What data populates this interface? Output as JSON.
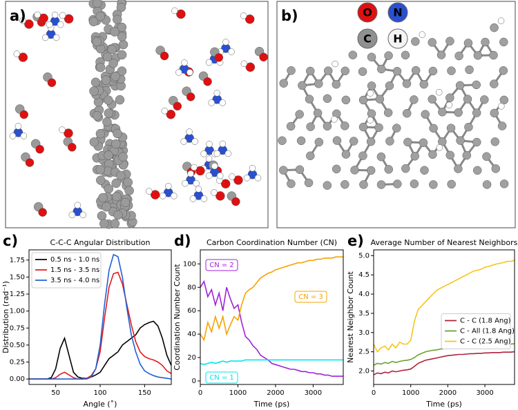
{
  "panels": {
    "a": {
      "label": "a)"
    },
    "b": {
      "label": "b)",
      "legend": [
        "O",
        "N",
        "C",
        "H"
      ]
    }
  },
  "chart_data": [
    {
      "type": "line",
      "panel_label": "c)",
      "title": "C-C-C Angular Distribution",
      "xlabel": "Angle (˚)",
      "ylabel": "Distribution (rad⁻¹)",
      "x": [
        20,
        25,
        30,
        35,
        40,
        45,
        50,
        55,
        60,
        65,
        70,
        75,
        80,
        85,
        90,
        95,
        100,
        105,
        110,
        115,
        120,
        125,
        130,
        135,
        140,
        145,
        150,
        155,
        160,
        165,
        170,
        175,
        180
      ],
      "series": [
        {
          "name": "0.5 ns - 1.0 ns",
          "color": "#000000",
          "values": [
            0,
            0,
            0,
            0,
            0,
            0.02,
            0.15,
            0.45,
            0.6,
            0.35,
            0.1,
            0.03,
            0.01,
            0.01,
            0.03,
            0.06,
            0.1,
            0.2,
            0.3,
            0.35,
            0.4,
            0.5,
            0.55,
            0.6,
            0.65,
            0.75,
            0.8,
            0.83,
            0.85,
            0.78,
            0.6,
            0.35,
            0.2
          ]
        },
        {
          "name": "1.5 ns - 3.5 ns",
          "color": "#e31a1c",
          "values": [
            0,
            0,
            0,
            0,
            0,
            0,
            0.02,
            0.07,
            0.1,
            0.06,
            0.02,
            0,
            0,
            0.01,
            0.05,
            0.15,
            0.4,
            0.9,
            1.35,
            1.55,
            1.57,
            1.4,
            1.1,
            0.8,
            0.55,
            0.4,
            0.33,
            0.3,
            0.28,
            0.25,
            0.2,
            0.12,
            0.08
          ]
        },
        {
          "name": "3.5 ns - 4.0 ns",
          "color": "#1f5fd6",
          "values": [
            0,
            0,
            0,
            0,
            0,
            0,
            0,
            0,
            0,
            0,
            0,
            0,
            0,
            0,
            0.03,
            0.15,
            0.5,
            1.1,
            1.6,
            1.83,
            1.8,
            1.5,
            1.05,
            0.65,
            0.4,
            0.22,
            0.12,
            0.08,
            0.05,
            0.03,
            0.02,
            0.01,
            0
          ]
        }
      ],
      "xlim": [
        20,
        180
      ],
      "xticks": [
        50,
        100,
        150
      ],
      "ylim": [
        -0.08,
        1.9
      ],
      "yticks": [
        {
          "value": 0,
          "label": "0.00"
        },
        {
          "value": 0.25,
          "label": "0.25"
        },
        {
          "value": 0.5,
          "label": "0.50"
        },
        {
          "value": 0.75,
          "label": "0.75"
        },
        {
          "value": 1,
          "label": "1.00"
        },
        {
          "value": 1.25,
          "label": "1.25"
        },
        {
          "value": 1.5,
          "label": "1.50"
        },
        {
          "value": 1.75,
          "label": "1.75"
        }
      ],
      "legend": "upper left"
    },
    {
      "type": "line",
      "panel_label": "d)",
      "title": "Carbon Coordination Number (CN)",
      "xlabel": "Time (ps)",
      "ylabel": "Coordination Number Count",
      "x": [
        0,
        100,
        200,
        300,
        400,
        500,
        600,
        700,
        800,
        900,
        1000,
        1100,
        1200,
        1300,
        1400,
        1500,
        1600,
        1700,
        1800,
        1900,
        2000,
        2100,
        2200,
        2300,
        2400,
        2500,
        2600,
        2700,
        2800,
        2900,
        3000,
        3100,
        3200,
        3300,
        3400,
        3500,
        3600,
        3700,
        3800
      ],
      "series": [
        {
          "name": "CN = 2",
          "color": "#a020d8",
          "values": [
            80,
            85,
            72,
            78,
            65,
            75,
            60,
            80,
            70,
            62,
            65,
            50,
            38,
            35,
            30,
            27,
            22,
            20,
            18,
            15,
            14,
            13,
            12,
            11,
            10,
            10,
            9,
            8,
            8,
            7,
            7,
            6,
            6,
            5,
            5,
            4,
            4,
            4,
            4
          ]
        },
        {
          "name": "CN = 3",
          "color": "#f5a300",
          "values": [
            40,
            35,
            50,
            42,
            55,
            45,
            55,
            40,
            48,
            55,
            52,
            65,
            75,
            78,
            80,
            84,
            88,
            90,
            92,
            93,
            95,
            96,
            97,
            98,
            99,
            100,
            101,
            101,
            102,
            103,
            103,
            104,
            104,
            105,
            105,
            105,
            106,
            106,
            106
          ]
        },
        {
          "name": "CN = 1",
          "color": "#00e5ee",
          "values": [
            15,
            14,
            15,
            16,
            15,
            16,
            17,
            16,
            17,
            17,
            17,
            17,
            18,
            18,
            18,
            18,
            18,
            18,
            18,
            18,
            18,
            18,
            18,
            18,
            18,
            18,
            18,
            18,
            18,
            18,
            18,
            18,
            18,
            18,
            18,
            18,
            18,
            18,
            18
          ]
        }
      ],
      "xlim": [
        0,
        3800
      ],
      "xticks": [
        0,
        1000,
        2000,
        3000
      ],
      "ylim": [
        -3,
        112
      ],
      "yticks": [
        0,
        20,
        40,
        60,
        80,
        100
      ]
    },
    {
      "type": "line",
      "panel_label": "e)",
      "title": "Average Number of Nearest Neighbors",
      "xlabel": "Time (ps)",
      "ylabel": "Nearest Neighbor Count",
      "x": [
        0,
        100,
        200,
        300,
        400,
        500,
        600,
        700,
        800,
        900,
        1000,
        1100,
        1200,
        1300,
        1400,
        1500,
        1600,
        1700,
        1800,
        1900,
        2000,
        2100,
        2200,
        2300,
        2400,
        2500,
        2600,
        2700,
        2800,
        2900,
        3000,
        3100,
        3200,
        3300,
        3400,
        3500,
        3600,
        3700,
        3800
      ],
      "series": [
        {
          "name": "C - C (1.8 Ang)",
          "color": "#b0203c",
          "values": [
            1.9,
            1.95,
            1.93,
            1.97,
            1.95,
            2.0,
            1.98,
            2.0,
            2.02,
            2.03,
            2.05,
            2.12,
            2.2,
            2.24,
            2.28,
            2.3,
            2.32,
            2.34,
            2.36,
            2.38,
            2.4,
            2.41,
            2.42,
            2.43,
            2.43,
            2.44,
            2.45,
            2.45,
            2.46,
            2.46,
            2.47,
            2.47,
            2.48,
            2.48,
            2.48,
            2.49,
            2.49,
            2.49,
            2.5
          ]
        },
        {
          "name": "C - All (1.8 Ang)",
          "color": "#6aa02a",
          "values": [
            2.15,
            2.2,
            2.18,
            2.22,
            2.2,
            2.25,
            2.22,
            2.25,
            2.27,
            2.28,
            2.3,
            2.35,
            2.42,
            2.46,
            2.5,
            2.52,
            2.54,
            2.55,
            2.57,
            2.58,
            2.6,
            2.6,
            2.61,
            2.62,
            2.63,
            2.64,
            2.64,
            2.65,
            2.66,
            2.66,
            2.67,
            2.68,
            2.68,
            2.69,
            2.69,
            2.7,
            2.7,
            2.7,
            2.71
          ]
        },
        {
          "name": "C - C (2.5 Ang)",
          "color": "#f5c518",
          "values": [
            2.7,
            2.5,
            2.6,
            2.65,
            2.55,
            2.7,
            2.6,
            2.75,
            2.7,
            2.7,
            2.8,
            3.3,
            3.6,
            3.7,
            3.8,
            3.9,
            4.0,
            4.1,
            4.15,
            4.2,
            4.25,
            4.3,
            4.35,
            4.4,
            4.45,
            4.5,
            4.55,
            4.6,
            4.62,
            4.65,
            4.7,
            4.72,
            4.75,
            4.78,
            4.8,
            4.82,
            4.85,
            4.85,
            4.88
          ]
        }
      ],
      "xlim": [
        0,
        3800
      ],
      "xticks": [
        0,
        1000,
        2000,
        3000
      ],
      "ylim": [
        1.65,
        5.15
      ],
      "yticks": [
        {
          "value": 2,
          "label": "2.0"
        },
        {
          "value": 2.5,
          "label": "2.5"
        },
        {
          "value": 3,
          "label": "3.0"
        },
        {
          "value": 3.5,
          "label": "3.5"
        },
        {
          "value": 4,
          "label": "4.0"
        },
        {
          "value": 4.5,
          "label": "4.5"
        },
        {
          "value": 5,
          "label": "5.0"
        }
      ],
      "legend": "center right"
    }
  ]
}
